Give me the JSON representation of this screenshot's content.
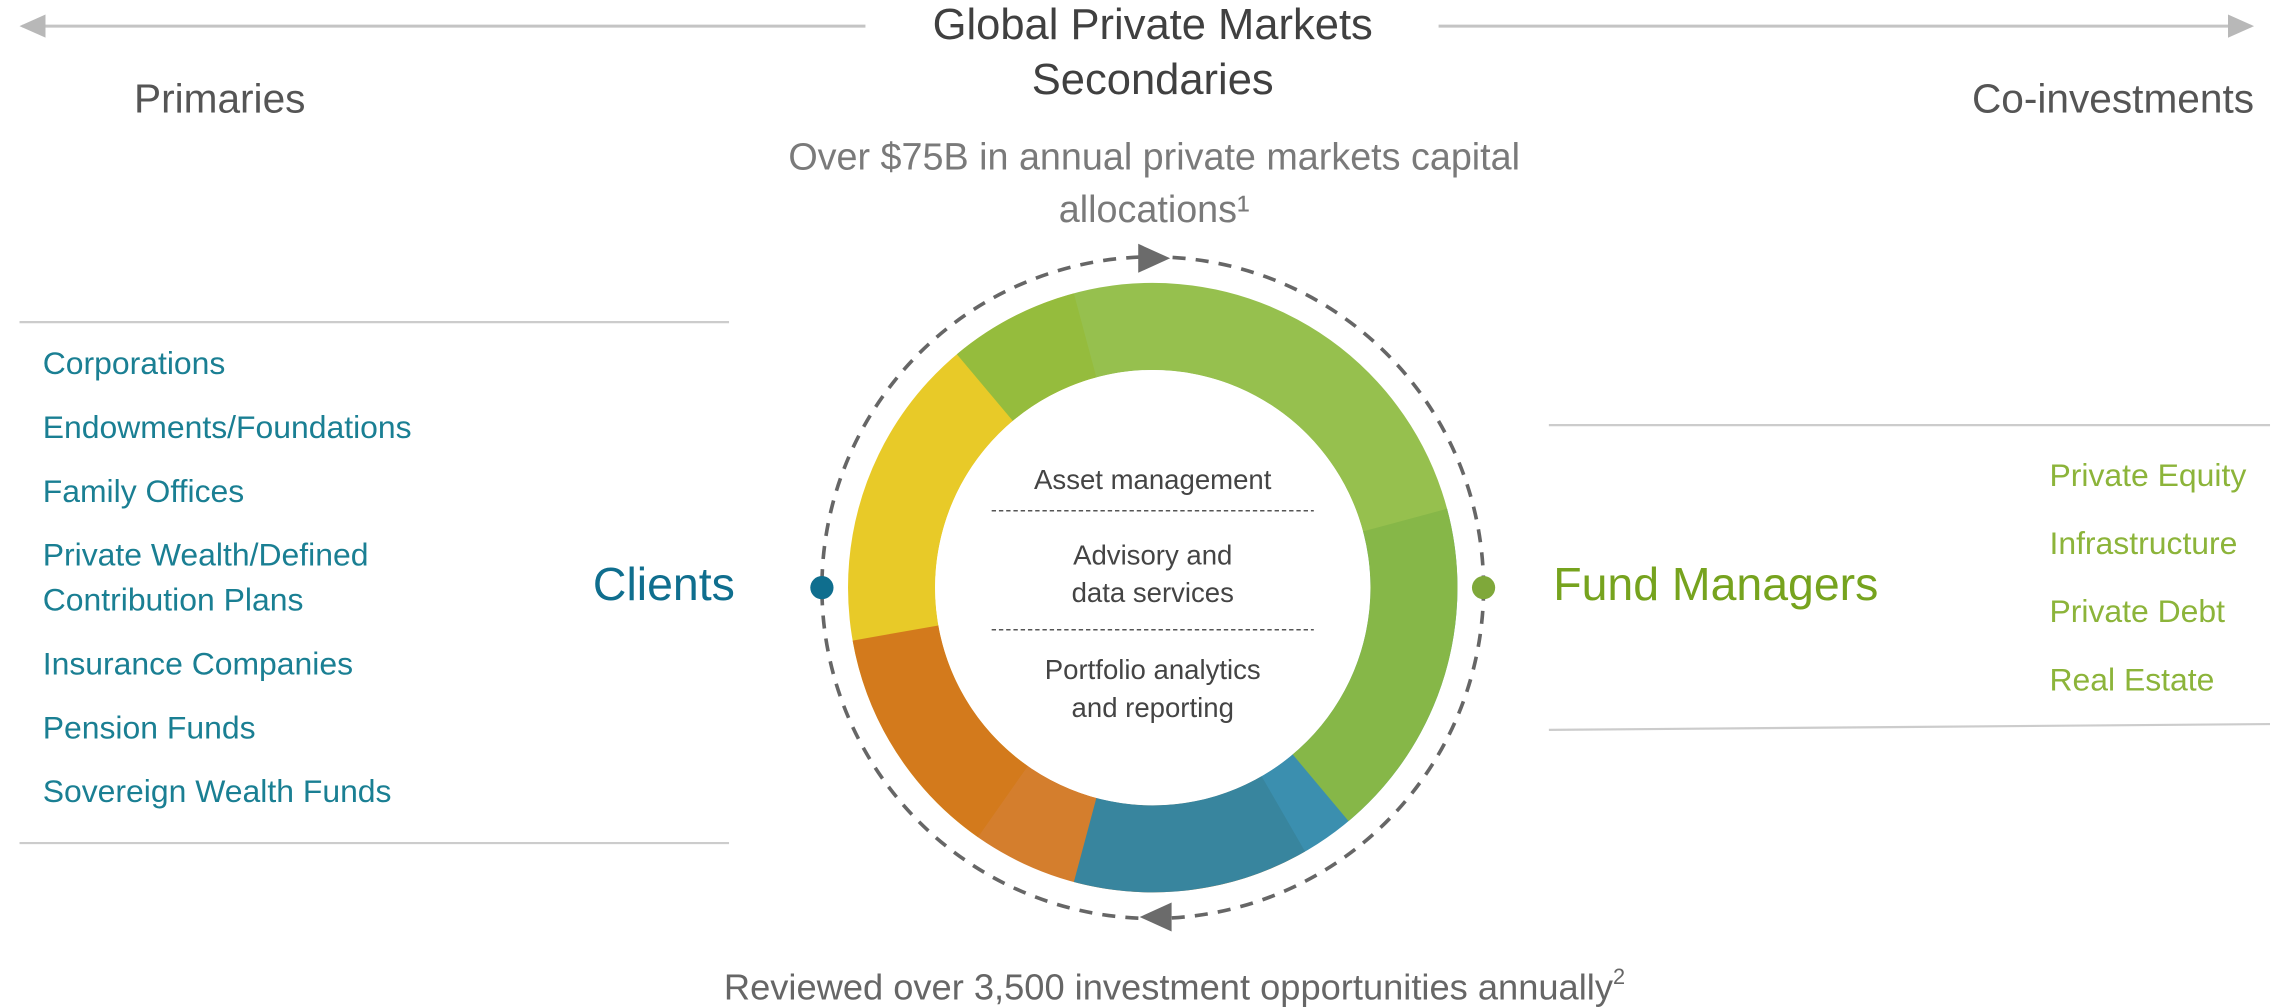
{
  "header": {
    "title_lines": [
      "Global Private Markets",
      "Secondaries"
    ],
    "left_label": "Primaries",
    "right_label": "Co-investments",
    "subtitle_lines": [
      "Over $75B in annual private markets capital",
      "allocations¹"
    ]
  },
  "clients": {
    "label": "Clients",
    "items": [
      [
        "Corporations"
      ],
      [
        "Endowments/Foundations"
      ],
      [
        "Family Offices"
      ],
      [
        "Private Wealth/Defined",
        "Contribution Plans"
      ],
      [
        "Insurance Companies"
      ],
      [
        "Pension Funds"
      ],
      [
        "Sovereign Wealth Funds"
      ]
    ]
  },
  "fund_managers": {
    "label": "Fund Managers",
    "items": [
      "Private Equity",
      "Infrastructure",
      "Private Debt",
      "Real Estate"
    ]
  },
  "services": [
    [
      "Asset management"
    ],
    [
      "Advisory and",
      "data services"
    ],
    [
      "Portfolio analytics",
      "and reporting"
    ]
  ],
  "footer": {
    "text": "Reviewed over 3,500 investment opportunities annually",
    "footnote": "2"
  }
}
